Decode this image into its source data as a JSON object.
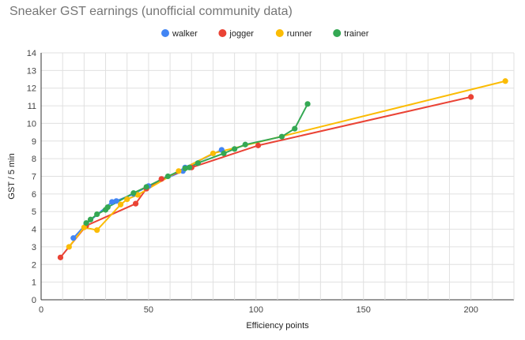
{
  "chart_data": {
    "type": "line",
    "title": "Sneaker GST earnings (unofficial community data)",
    "xlabel": "Efficiency points",
    "ylabel": "GST / 5 min",
    "xlim": [
      0,
      220
    ],
    "ylim": [
      0,
      14
    ],
    "x_ticks": [
      0,
      50,
      100,
      150,
      200
    ],
    "y_ticks": [
      0,
      1,
      2,
      3,
      4,
      5,
      6,
      7,
      8,
      9,
      10,
      11,
      12,
      13,
      14
    ],
    "grid": true,
    "legend_position": "top",
    "series": [
      {
        "name": "walker",
        "color": "#4285F4",
        "points": [
          [
            15,
            3.5
          ],
          [
            21,
            4.3
          ],
          [
            33,
            5.55
          ],
          [
            35,
            5.6
          ],
          [
            43,
            6.0
          ],
          [
            50,
            6.45
          ],
          [
            66,
            7.3
          ],
          [
            67,
            7.5
          ],
          [
            84,
            8.5
          ]
        ]
      },
      {
        "name": "jogger",
        "color": "#EA4335",
        "points": [
          [
            9,
            2.4
          ],
          [
            21,
            4.2
          ],
          [
            44,
            5.45
          ],
          [
            49,
            6.3
          ],
          [
            56,
            6.85
          ],
          [
            70,
            7.5
          ],
          [
            101,
            8.75
          ],
          [
            200,
            11.5
          ]
        ]
      },
      {
        "name": "runner",
        "color": "#FBBC04",
        "points": [
          [
            13,
            3.0
          ],
          [
            20,
            4.1
          ],
          [
            26,
            3.95
          ],
          [
            37,
            5.4
          ],
          [
            40,
            5.7
          ],
          [
            45,
            5.95
          ],
          [
            64,
            7.3
          ],
          [
            80,
            8.3
          ],
          [
            216,
            12.4
          ]
        ]
      },
      {
        "name": "trainer",
        "color": "#34A853",
        "points": [
          [
            21,
            4.35
          ],
          [
            23,
            4.55
          ],
          [
            26,
            4.85
          ],
          [
            30,
            5.1
          ],
          [
            31,
            5.25
          ],
          [
            43,
            6.05
          ],
          [
            49,
            6.4
          ],
          [
            59,
            7.0
          ],
          [
            67,
            7.45
          ],
          [
            69,
            7.5
          ],
          [
            73,
            7.75
          ],
          [
            85,
            8.3
          ],
          [
            90,
            8.55
          ],
          [
            95,
            8.8
          ],
          [
            112,
            9.25
          ],
          [
            118,
            9.7
          ],
          [
            124,
            11.1
          ]
        ]
      }
    ]
  }
}
